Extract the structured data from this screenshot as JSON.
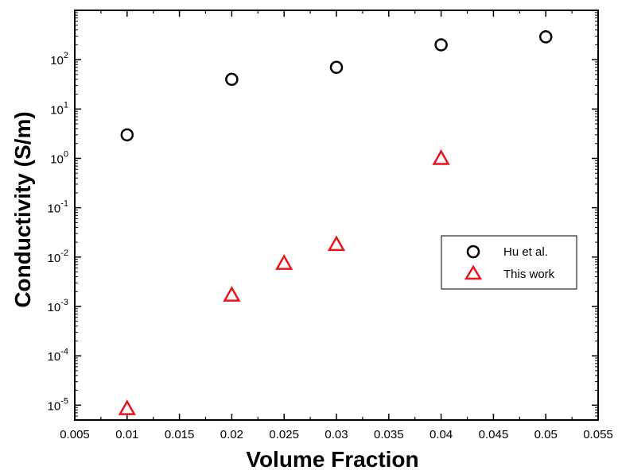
{
  "chart_data": {
    "type": "scatter",
    "xlabel": "Volume Fraction",
    "ylabel": "Conductivity (S/m)",
    "xlim": [
      0.005,
      0.055
    ],
    "ylim": [
      5e-06,
      1000
    ],
    "yscale": "log",
    "x_ticks": [
      "0.005",
      "0.01",
      "0.015",
      "0.02",
      "0.025",
      "0.03",
      "0.035",
      "0.04",
      "0.045",
      "0.05",
      "0.055"
    ],
    "y_ticks": [
      {
        "base": "10",
        "exp": "-5",
        "value": 1e-05
      },
      {
        "base": "10",
        "exp": "-4",
        "value": 0.0001
      },
      {
        "base": "10",
        "exp": "-3",
        "value": 0.001
      },
      {
        "base": "10",
        "exp": "-2",
        "value": 0.01
      },
      {
        "base": "10",
        "exp": "-1",
        "value": 0.1
      },
      {
        "base": "10",
        "exp": "0",
        "value": 1
      },
      {
        "base": "10",
        "exp": "1",
        "value": 10
      },
      {
        "base": "10",
        "exp": "2",
        "value": 100
      }
    ],
    "grid": false,
    "legend_position": "right",
    "series": [
      {
        "name": "Hu et al.",
        "marker": "circle",
        "color": "#000000",
        "points": [
          {
            "x": 0.01,
            "y": 3
          },
          {
            "x": 0.02,
            "y": 40
          },
          {
            "x": 0.03,
            "y": 70
          },
          {
            "x": 0.04,
            "y": 200
          },
          {
            "x": 0.05,
            "y": 290
          }
        ]
      },
      {
        "name": "This work",
        "marker": "triangle",
        "color": "#e8141a",
        "points": [
          {
            "x": 0.01,
            "y": 8.5e-06
          },
          {
            "x": 0.02,
            "y": 0.0017
          },
          {
            "x": 0.025,
            "y": 0.0075
          },
          {
            "x": 0.03,
            "y": 0.018
          },
          {
            "x": 0.04,
            "y": 1
          }
        ]
      }
    ]
  }
}
